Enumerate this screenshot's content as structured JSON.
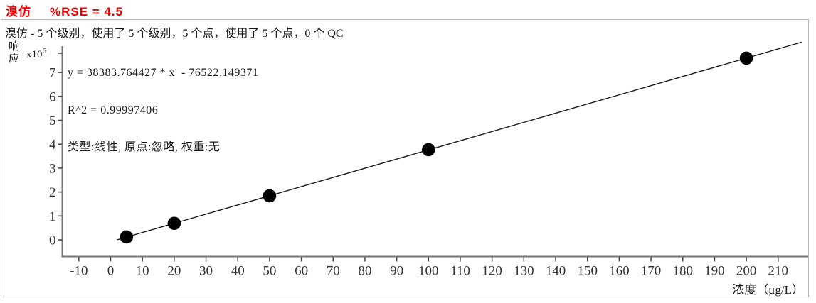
{
  "header": {
    "compound": "溴仿",
    "rse": "%RSE = 4.5",
    "accent_hex": "#ee0000"
  },
  "subtitle": "溴仿 - 5 个级别，使用了 5 个级别，5 个点，使用了 5 个点，0 个 QC",
  "equation": {
    "formula": "y = 38383.764427 * x  - 76522.149371",
    "r_squared": "R^2 = 0.99997406",
    "model": "类型:线性, 原点:忽略, 权重:无"
  },
  "chart_data": {
    "type": "scatter",
    "xlabel": "浓度（μg/L）",
    "ylabel": "响应",
    "y_scale": {
      "base": "x10",
      "exp": "6"
    },
    "x_ticks": [
      -10,
      0,
      10,
      20,
      30,
      40,
      50,
      60,
      70,
      80,
      90,
      100,
      110,
      120,
      130,
      140,
      150,
      160,
      170,
      180,
      190,
      200,
      210
    ],
    "y_ticks": [
      0,
      1,
      2,
      3,
      4,
      5,
      6,
      7
    ],
    "xlim": [
      -15,
      221
    ],
    "ylim_e6": [
      -0.7,
      8.1
    ],
    "grid": false,
    "legend": false,
    "points": [
      {
        "x": 5,
        "y_e6": 0.12
      },
      {
        "x": 20,
        "y_e6": 0.69
      },
      {
        "x": 50,
        "y_e6": 1.84
      },
      {
        "x": 100,
        "y_e6": 3.77
      },
      {
        "x": 200,
        "y_e6": 7.6
      }
    ],
    "fit": {
      "slope": 38383.764427,
      "intercept": -76522.149371,
      "r2": 0.99997406,
      "line_x_end": 217.5
    },
    "colors": {
      "point": "#000000",
      "line": "#1a1a1a",
      "axis": "#777777",
      "tick": "#444444"
    }
  }
}
